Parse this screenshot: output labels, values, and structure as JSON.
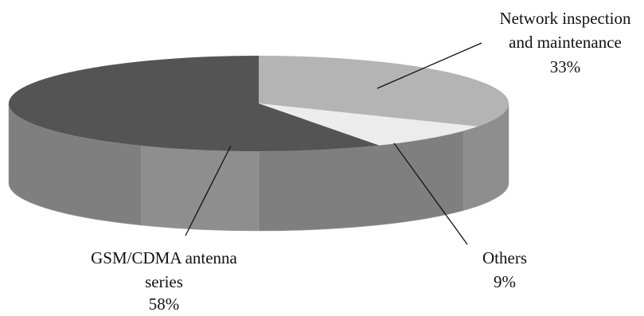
{
  "chart_data": {
    "type": "pie",
    "style": "3d",
    "slices": [
      {
        "label_lines": [
          "Network inspection",
          "and maintenance"
        ],
        "percent_label": "33%",
        "value": 33,
        "color": "#b4b4b4"
      },
      {
        "label_lines": [
          "Others"
        ],
        "percent_label": "9%",
        "value": 9,
        "color": "#ececec"
      },
      {
        "label_lines": [
          "GSM/CDMA antenna",
          "series"
        ],
        "percent_label": "58%",
        "value": 58,
        "color": "#545454"
      }
    ],
    "legend": "none"
  },
  "colors": {
    "side_light": "#8e8e8e",
    "side_dark": "#7f7f7f",
    "leader_line": "#111111"
  }
}
